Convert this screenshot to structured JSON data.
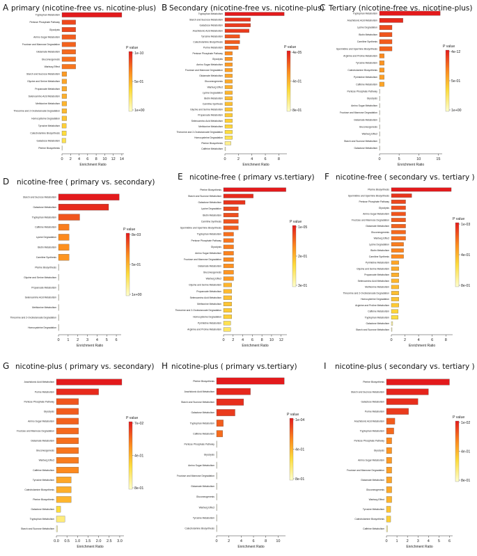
{
  "chart_data": [
    {
      "panel": "A",
      "type": "bar",
      "orientation": "horizontal",
      "title": "primary (nicotine-free vs. nicotine-plus)",
      "xlabel": "Enrichment Ratio",
      "xticks": [
        0,
        2,
        4,
        6,
        8,
        10,
        12,
        14
      ],
      "xlim": [
        0,
        14.5
      ],
      "legend": {
        "title": "P value",
        "labels": [
          "1e-10",
          "5e-01",
          "1e+00"
        ]
      },
      "categories": [
        "Tryptophan Metabolism",
        "Pentose Phosphate Pathway",
        "Glycolysis",
        "Amino Sugar Metabolism",
        "Fructose and Mannose Degradation",
        "Glutamate Metabolism",
        "Gluconeogenesis",
        "Warburg Effect",
        "Starch and Sucrose Metabolism",
        "Glycine and Serine Metabolism",
        "Propanoate Metabolism",
        "Selenoamino Acid Metabolism",
        "Methionine Metabolism",
        "Threonine and 2-Oxobutanoate Degradation",
        "Homocysteine Degradation",
        "Tyrosine Metabolism",
        "Catecholamine Biosynthesis",
        "Galactose Metabolism",
        "Pterine Biosynthesis"
      ],
      "values": [
        14,
        3.2,
        3.2,
        3.2,
        3.2,
        3.2,
        3.2,
        3.2,
        1.1,
        1.1,
        1.1,
        1.1,
        1.1,
        1.1,
        1.1,
        1,
        1,
        0.9,
        0.05
      ],
      "color_level": [
        1,
        0.86,
        0.86,
        0.8,
        0.78,
        0.76,
        0.74,
        0.72,
        0.6,
        0.56,
        0.54,
        0.52,
        0.5,
        0.48,
        0.44,
        0.4,
        0.35,
        0.3,
        0.05
      ]
    },
    {
      "panel": "B",
      "type": "bar",
      "orientation": "horizontal",
      "title": "Secondary (nicotine-free vs. nicotine-plus)",
      "xlabel": "Enrichment Ratio",
      "xticks": [
        0,
        2,
        4,
        6,
        8
      ],
      "xlim": [
        0,
        9.2
      ],
      "legend": {
        "title": "P value",
        "labels": [
          "4e-05",
          "4e-01",
          "8e-01"
        ]
      },
      "categories": [
        "Tryptophan Metabolism",
        "Starch and Sucrose Metabolism",
        "Galactose Metabolism",
        "Arachidonic Acid Metabolism",
        "Tyrosine Metabolism",
        "Catecholamine Biosynthesis",
        "Purine Metabolism",
        "Pentose Phosphate Pathway",
        "Glycolysis",
        "Amino Sugar Metabolism",
        "Fructose and Mannose Degradation",
        "Glutamate Metabolism",
        "Gluconeogenesis",
        "Warburg Effect",
        "Lysine Degradation",
        "Biotin Metabolism",
        "Carnitine Synthesis",
        "Glycine and Serine Metabolism",
        "Propanoate Metabolism",
        "Selenoamino Acid Metabolism",
        "Methionine Metabolism",
        "Threonine and 2-Oxobutanoate Degradation",
        "Homocysteine Degradation",
        "Pterine Biosynthesis",
        "Caffeine Metabolism"
      ],
      "values": [
        8.8,
        3.8,
        3.8,
        3.6,
        2.2,
        2.2,
        2.0,
        1.1,
        1.1,
        1.1,
        1.1,
        1.1,
        1.1,
        1.1,
        1.1,
        1.1,
        1.1,
        1.1,
        1.1,
        1.1,
        1.1,
        1.1,
        1.1,
        0.9,
        0.1
      ],
      "color_level": [
        1,
        0.92,
        0.9,
        0.9,
        0.82,
        0.8,
        0.78,
        0.66,
        0.62,
        0.6,
        0.58,
        0.56,
        0.54,
        0.52,
        0.5,
        0.48,
        0.46,
        0.44,
        0.42,
        0.4,
        0.38,
        0.34,
        0.3,
        0.15,
        0.05
      ]
    },
    {
      "panel": "C",
      "type": "bar",
      "orientation": "horizontal",
      "title": "Tertiary (nicotine-free vs. nicotine-plus)",
      "xlabel": "Enrichment Ratio",
      "xticks": [
        0,
        5,
        10,
        15
      ],
      "xlim": [
        0,
        16
      ],
      "legend": {
        "title": "P value",
        "labels": [
          "4e-12",
          "5e-01",
          "1e+00"
        ]
      },
      "categories": [
        "Tryptophan Metabolism",
        "Arachidonic Acid Metabolism",
        "Lysine Degradation",
        "Biotin Metabolism",
        "Carnitine Synthesis",
        "Spermidine and Spermine Biosynthesis",
        "Arginine and Proline Metabolism",
        "Tyrosine Metabolism",
        "Catecholamine Biosynthesis",
        "Pyrimidine Metabolism",
        "Caffeine Metabolism",
        "Pentose Phosphate Pathway",
        "Glycolysis",
        "Amino Sugar Metabolism",
        "Fructose and Mannose Degradation",
        "Glutamate Metabolism",
        "Gluconeogenesis",
        "Warburg Effect",
        "Starch and Sucrose Metabolism",
        "Galactose Metabolism"
      ],
      "values": [
        15.5,
        6.0,
        3.2,
        3.2,
        3.2,
        3.2,
        1.2,
        1.2,
        1.2,
        1.2,
        1.2,
        0.05,
        0.05,
        0.05,
        0.05,
        0.05,
        0.05,
        0.05,
        0.05,
        0.05
      ],
      "color_level": [
        1,
        0.95,
        0.85,
        0.82,
        0.8,
        0.78,
        0.66,
        0.62,
        0.6,
        0.58,
        0.56,
        0.05,
        0.05,
        0.05,
        0.05,
        0.05,
        0.05,
        0.05,
        0.05,
        0.05
      ]
    },
    {
      "panel": "D",
      "type": "bar",
      "orientation": "horizontal",
      "title": "nicotine-free  ( primary vs. secondary)",
      "xlabel": "Enrichment Ratio",
      "xticks": [
        0,
        1,
        2,
        3,
        4,
        5,
        6
      ],
      "xlim": [
        0,
        6.5
      ],
      "legend": {
        "title": "P value",
        "labels": [
          "8e-03",
          "5e-01",
          "1e+00"
        ]
      },
      "categories": [
        "Starch and Sucrose Metabolism",
        "Galactose Metabolism",
        "Tryptophan Metabolism",
        "Caffeine Metabolism",
        "Lysine Degradation",
        "Biotin Metabolism",
        "Carnitine Synthesis",
        "Pterine Biosynthesis",
        "Glycine and Serine Metabolism",
        "Propanoate Metabolism",
        "Selenoamino Acid Metabolism",
        "Methionine Metabolism",
        "Threonine and 2-Oxobutanoate Degradation",
        "Homocysteine Degradation"
      ],
      "values": [
        6.3,
        5.2,
        2.2,
        1.1,
        1.1,
        1.1,
        1.1,
        0.02,
        0.02,
        0.02,
        0.02,
        0.02,
        0.02,
        0.02
      ],
      "color_level": [
        1,
        0.95,
        0.82,
        0.7,
        0.66,
        0.64,
        0.62,
        0.05,
        0.05,
        0.05,
        0.05,
        0.05,
        0.05,
        0.05
      ]
    },
    {
      "panel": "E",
      "type": "bar",
      "orientation": "horizontal",
      "title": "nicotine-free  ( primary vs.tertiary)",
      "xlabel": "Enrichment Ratio",
      "xticks": [
        0,
        2,
        4,
        6,
        8,
        10,
        12
      ],
      "xlim": [
        0,
        13.2
      ],
      "legend": {
        "title": "P value",
        "labels": [
          "1e-05",
          "2e-01",
          "3e-01"
        ]
      },
      "categories": [
        "Pterine Biosynthesis",
        "Starch and Sucrose Metabolism",
        "Galactose Metabolism",
        "Lysine Degradation",
        "Biotin Metabolism",
        "Carnitine Synthesis",
        "Spermidine and Spermine Biosynthesis",
        "Tryptophan Metabolism",
        "Pentose Phosphate Pathway",
        "Glycolysis",
        "Amino Sugar Metabolism",
        "Fructose and Mannose Degradation",
        "Glutamate Metabolism",
        "Gluconeogenesis",
        "Warburg Effect",
        "Glycine and Serine Metabolism",
        "Propanoate Metabolism",
        "Selenoamino Acid Metabolism",
        "Methionine Metabolism",
        "Threonine and 2-Oxobutanoate Degradation",
        "Homocysteine Degradation",
        "Pyrimidine Metabolism",
        "Arginine and Proline Metabolism"
      ],
      "values": [
        13,
        6.2,
        4.5,
        3.1,
        3.1,
        3.1,
        3.1,
        2.1,
        2.1,
        2.1,
        2.1,
        2.1,
        2.1,
        2.1,
        2.1,
        1.7,
        1.7,
        1.7,
        1.7,
        1.7,
        1.7,
        1.5,
        1.5
      ],
      "color_level": [
        1,
        0.95,
        0.92,
        0.86,
        0.84,
        0.82,
        0.8,
        0.74,
        0.72,
        0.7,
        0.68,
        0.66,
        0.64,
        0.62,
        0.6,
        0.5,
        0.48,
        0.46,
        0.44,
        0.42,
        0.4,
        0.3,
        0.25
      ]
    },
    {
      "panel": "F",
      "type": "bar",
      "orientation": "horizontal",
      "title": "nicotine-free  ( secondary vs. tertiary )",
      "xlabel": "Enrichment Ratio",
      "xticks": [
        0,
        2,
        4,
        6,
        8
      ],
      "xlim": [
        0,
        9
      ],
      "legend": {
        "title": "P value",
        "labels": [
          "1e-03",
          "4e-01",
          "8e-01"
        ]
      },
      "categories": [
        "Pterine Biosynthesis",
        "Spermidine and Spermine Biosynthesis",
        "Pentose Phosphate Pathway",
        "Glycolysis",
        "Amino Sugar Metabolism",
        "Fructose and Mannose Degradation",
        "Glutamate Metabolism",
        "Gluconeogenesis",
        "Warburg Effect",
        "Lysine Degradation",
        "Biotin Metabolism",
        "Carnitine Synthesis",
        "Pyrimidine Metabolism",
        "Glycine and Serine Metabolism",
        "Propanoate Metabolism",
        "Selenoamino Acid Metabolism",
        "Methionine Metabolism",
        "Threonine and 2-Oxobutanoate Degradation",
        "Homocysteine Degradation",
        "Arginine and Proline Metabolism",
        "Caffeine Metabolism",
        "Tryptophan Metabolism",
        "Galactose Metabolism",
        "Starch and Sucrose Metabolism"
      ],
      "values": [
        8.8,
        3.0,
        2.1,
        2.1,
        2.1,
        2.1,
        2.1,
        2.1,
        2.1,
        1.8,
        1.8,
        1.8,
        1.1,
        1.1,
        1.1,
        1.1,
        1.1,
        1.1,
        1.1,
        1.1,
        1.0,
        1.0,
        0.2,
        0.1
      ],
      "color_level": [
        1,
        0.92,
        0.86,
        0.84,
        0.82,
        0.8,
        0.78,
        0.76,
        0.74,
        0.7,
        0.68,
        0.66,
        0.56,
        0.54,
        0.52,
        0.5,
        0.48,
        0.46,
        0.44,
        0.42,
        0.38,
        0.34,
        0.1,
        0.05
      ]
    },
    {
      "panel": "G",
      "type": "bar",
      "orientation": "horizontal",
      "title": "nicotine-plus  ( primary vs. secondary)",
      "xlabel": "Enrichment Ratio",
      "xticks": [
        "0.0",
        "0.5",
        "1.0",
        "1.5",
        "2.0",
        "2.5",
        "3.0"
      ],
      "xlim": [
        0,
        3.2
      ],
      "legend": {
        "title": "P value",
        "labels": [
          "7e-02",
          "4e-01",
          "8e-01"
        ]
      },
      "categories": [
        "Arachidonic Acid Metabolism",
        "Purine Metabolism",
        "Pentose Phosphate Pathway",
        "Glycolysis",
        "Amino Sugar Metabolism",
        "Fructose and Mannose Degradation",
        "Glutamate Metabolism",
        "Gluconeogenesis",
        "Warburg Effect",
        "Caffeine Metabolism",
        "Tyrosine Metabolism",
        "Catecholamine Biosynthesis",
        "Pterine Biosynthesis",
        "Galactose Metabolism",
        "Tryptophan Metabolism",
        "Starch and Sucrose Metabolism"
      ],
      "values": [
        3.1,
        2.0,
        1.05,
        1.05,
        1.05,
        1.05,
        1.05,
        1.05,
        1.05,
        1.05,
        0.7,
        0.7,
        0.7,
        0.2,
        0.4,
        0.05
      ],
      "color_level": [
        1,
        0.95,
        0.82,
        0.8,
        0.78,
        0.76,
        0.74,
        0.72,
        0.7,
        0.66,
        0.55,
        0.52,
        0.5,
        0.35,
        0.2,
        0.05
      ]
    },
    {
      "panel": "H",
      "type": "bar",
      "orientation": "horizontal",
      "title": "nicotine-plus  ( primary vs.tertiary)",
      "xlabel": "Enrichment Ratio",
      "xticks": [
        0,
        2,
        4,
        6,
        8,
        10
      ],
      "xlim": [
        0,
        11.2
      ],
      "legend": {
        "title": "P value",
        "labels": [
          "1e-04",
          "4e-01",
          "8e-01"
        ]
      },
      "categories": [
        "Pterine Biosynthesis",
        "Arachidonic Acid Metabolism",
        "Starch and Sucrose Metabolism",
        "Galactose Metabolism",
        "Tryptophan Metabolism",
        "Caffeine Metabolism",
        "Pentose Phosphate Pathway",
        "Glycolysis",
        "Amino Sugar Metabolism",
        "Fructose and Mannose Degradation",
        "Glutamate Metabolism",
        "Gluconeogenesis",
        "Warburg Effect",
        "Tyrosine Metabolism",
        "Catecholamine Biosynthesis"
      ],
      "values": [
        11,
        5.5,
        4.4,
        3.0,
        1.1,
        1.0,
        0.05,
        0.05,
        0.05,
        0.05,
        0.05,
        0.05,
        0.05,
        0.05,
        0.05
      ],
      "color_level": [
        1,
        0.96,
        0.94,
        0.9,
        0.8,
        0.75,
        0.05,
        0.05,
        0.05,
        0.05,
        0.05,
        0.05,
        0.05,
        0.05,
        0.05
      ]
    },
    {
      "panel": "I",
      "type": "bar",
      "orientation": "horizontal",
      "title": "nicotine-plus  ( secondary vs. tertiary )",
      "xlabel": "Enrichment Ratio",
      "xticks": [
        0,
        1,
        2,
        3,
        4,
        5,
        6
      ],
      "xlim": [
        0,
        6.3
      ],
      "legend": {
        "title": "P value",
        "labels": [
          "1e-02",
          "4e-01",
          "8e-01"
        ]
      },
      "categories": [
        "Pterine Biosynthesis",
        "Starch and Sucrose Metabolism",
        "Galactose Metabolism",
        "Purine Metabolism",
        "Arachidonic Acid Metabolism",
        "Tryptophan Metabolism",
        "Pentose Phosphate Pathway",
        "Glycolysis",
        "Amino Sugar Metabolism",
        "Fructose and Mannose Degradation",
        "Glutamate Metabolism",
        "Gluconeogenesis",
        "Warburg Effect",
        "Tyrosine Metabolism",
        "Catecholamine Biosynthesis",
        "Caffeine Metabolism"
      ],
      "values": [
        6.0,
        4.0,
        3.0,
        2.1,
        0.8,
        0.7,
        0.5,
        0.5,
        0.5,
        0.5,
        0.5,
        0.5,
        0.5,
        0.4,
        0.4,
        0.1
      ],
      "color_level": [
        1,
        0.97,
        0.94,
        0.9,
        0.8,
        0.76,
        0.66,
        0.62,
        0.6,
        0.58,
        0.56,
        0.54,
        0.5,
        0.44,
        0.4,
        0.1
      ]
    }
  ]
}
